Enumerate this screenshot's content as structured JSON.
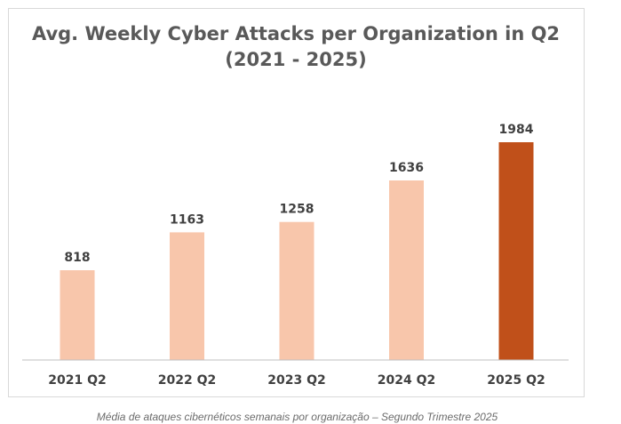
{
  "colors": {
    "bar": "#f8c6ab",
    "highlight": "#c0501a",
    "axis": "#bfbfbf",
    "title": "#595959",
    "labels": "#404040"
  },
  "chart_data": {
    "type": "bar",
    "title": "Avg. Weekly Cyber Attacks per Organization in Q2",
    "subtitle": "(2021 - 2025)",
    "categories": [
      "2021 Q2",
      "2022 Q2",
      "2023 Q2",
      "2024 Q2",
      "2025 Q2"
    ],
    "values": [
      818,
      1163,
      1258,
      1636,
      1984
    ],
    "highlighted_category": "2025 Q2",
    "xlabel": "",
    "ylabel": "",
    "ylim": [
      0,
      2000
    ],
    "grid": false,
    "legend": "none",
    "data_labels": true
  },
  "caption": "Média de ataques cibernéticos semanais por organização – Segundo Trimestre 2025"
}
